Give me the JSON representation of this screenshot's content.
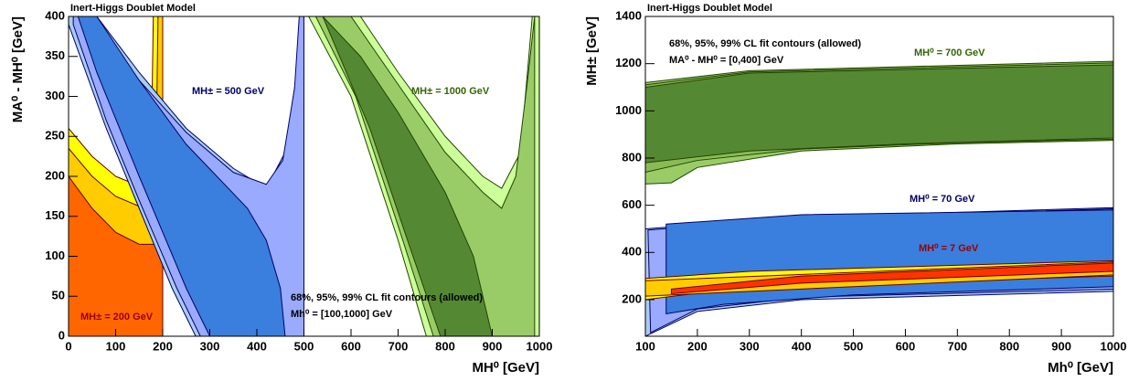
{
  "chart_data": [
    {
      "type": "contour",
      "title": "Inert-Higgs Doublet Model",
      "x_label": "MH⁰ [GeV]",
      "y_label": "MA⁰ - MH⁰ [GeV]",
      "annotations": [
        "68%, 95%, 99% CL fit contours (allowed)",
        "Mh⁰ = [100,1000] GeV"
      ],
      "xlim": [
        0,
        1000
      ],
      "ylim": [
        0,
        400
      ],
      "xticks": [
        0,
        100,
        200,
        300,
        400,
        500,
        600,
        700,
        800,
        900,
        1000
      ],
      "yticks": [
        0,
        50,
        100,
        150,
        200,
        250,
        300,
        350,
        400
      ],
      "series": [
        {
          "name": "MH± = 200 GeV",
          "color": "#990000",
          "regions": [
            {
              "color": "#ffff00",
              "x": [
                0,
                50,
                100,
                150,
                175,
                180,
                200,
                200,
                0
              ],
              "y": [
                260,
                225,
                200,
                188,
                200,
                400,
                400,
                0,
                0
              ]
            },
            {
              "color": "#ffcc00",
              "x": [
                0,
                50,
                100,
                160,
                185,
                190,
                200,
                200,
                0
              ],
              "y": [
                235,
                200,
                175,
                160,
                180,
                400,
                400,
                0,
                0
              ]
            },
            {
              "color": "#ff6600",
              "x": [
                0,
                50,
                100,
                150,
                200,
                200,
                0
              ],
              "y": [
                200,
                160,
                130,
                115,
                115,
                0,
                0
              ]
            }
          ]
        },
        {
          "name": "MH± = 500 GeV",
          "color": "#000066",
          "regions": [
            {
              "color": "#aaccf2",
              "x": [
                0,
                60,
                150,
                250,
                350,
                420,
                460,
                485,
                495,
                500,
                500,
                270,
                220,
                150,
                80,
                0
              ],
              "y": [
                400,
                400,
                330,
                260,
                210,
                185,
                230,
                330,
                400,
                400,
                0,
                0,
                60,
                160,
                260,
                390
              ]
            },
            {
              "color": "#99aaff",
              "x": [
                10,
                55,
                150,
                250,
                350,
                420,
                455,
                480,
                490,
                500,
                500,
                280,
                230,
                150,
                80,
                10
              ],
              "y": [
                400,
                400,
                320,
                255,
                205,
                190,
                220,
                310,
                400,
                400,
                0,
                0,
                60,
                170,
                270,
                390
              ]
            },
            {
              "color": "#3a7fdd",
              "x": [
                20,
                60,
                150,
                250,
                380,
                420,
                450,
                460,
                300,
                250,
                150,
                60
              ],
              "y": [
                400,
                400,
                320,
                240,
                160,
                120,
                60,
                0,
                0,
                60,
                200,
                330
              ]
            }
          ]
        },
        {
          "name": "MH± = 1000 GeV",
          "color": "#336600",
          "regions": [
            {
              "color": "#ccff99",
              "x": [
                510,
                620,
                700,
                800,
                880,
                920,
                960,
                985,
                1000,
                1000,
                760,
                700,
                600
              ],
              "y": [
                400,
                400,
                330,
                250,
                200,
                185,
                230,
                400,
                400,
                0,
                0,
                120,
                300
              ]
            },
            {
              "color": "#99cc66",
              "x": [
                525,
                600,
                700,
                800,
                880,
                920,
                950,
                975,
                990,
                990,
                775,
                710,
                610
              ],
              "y": [
                400,
                400,
                315,
                230,
                180,
                160,
                200,
                320,
                400,
                0,
                0,
                120,
                300
              ]
            },
            {
              "color": "#558833",
              "x": [
                540,
                620,
                700,
                800,
                860,
                900,
                790,
                720,
                640
              ],
              "y": [
                400,
                350,
                280,
                180,
                100,
                0,
                0,
                120,
                260
              ]
            }
          ]
        }
      ]
    },
    {
      "type": "contour",
      "title": "Inert-Higgs Doublet Model",
      "x_label": "Mh⁰ [GeV]",
      "y_label": "MH± [GeV]",
      "annotations": [
        "68%, 95%, 99% CL fit contours (allowed)",
        "MA⁰ - MH⁰ = [0,400] GeV"
      ],
      "xlim": [
        100,
        1000
      ],
      "ylim": [
        45,
        1400
      ],
      "xticks": [
        100,
        200,
        300,
        400,
        500,
        600,
        700,
        800,
        900,
        1000
      ],
      "yticks": [
        200,
        400,
        600,
        800,
        1000,
        1200,
        1400
      ],
      "series": [
        {
          "name": "MH⁰ = 700 GeV",
          "color": "#336600",
          "regions": [
            {
              "color": "#99cc66",
              "x": [
                100,
                300,
                1000,
                1000,
                700,
                400,
                200,
                150,
                100
              ],
              "y": [
                1120,
                1170,
                1210,
                875,
                860,
                830,
                760,
                695,
                690
              ]
            },
            {
              "color": "#88bb55",
              "x": [
                100,
                300,
                1000,
                1000,
                700,
                400,
                200,
                100
              ],
              "y": [
                1110,
                1165,
                1203,
                880,
                865,
                838,
                790,
                740
              ]
            },
            {
              "color": "#558833",
              "x": [
                100,
                300,
                1000,
                1000,
                600,
                300,
                100
              ],
              "y": [
                1100,
                1160,
                1195,
                885,
                860,
                830,
                780
              ]
            }
          ]
        },
        {
          "name": "MH⁰ = 70 GeV",
          "color": "#000066",
          "regions": [
            {
              "color": "#aaccf2",
              "x": [
                100,
                400,
                1000,
                1000,
                400,
                200,
                100
              ],
              "y": [
                500,
                550,
                590,
                235,
                200,
                150,
                45
              ]
            },
            {
              "color": "#99aaff",
              "x": [
                105,
                400,
                1000,
                1000,
                400,
                200,
                110
              ],
              "y": [
                495,
                545,
                585,
                245,
                210,
                160,
                60
              ]
            },
            {
              "color": "#3a7fdd",
              "x": [
                140,
                400,
                1000,
                1000,
                500,
                250,
                140
              ],
              "y": [
                520,
                560,
                580,
                255,
                220,
                180,
                140
              ]
            }
          ]
        },
        {
          "name": "MH⁰ = 7 GeV",
          "color": "#990000",
          "regions": [
            {
              "color": "#ffff00",
              "x": [
                100,
                300,
                1000,
                1000,
                300,
                100
              ],
              "y": [
                290,
                320,
                365,
                300,
                255,
                200
              ]
            },
            {
              "color": "#ffcc00",
              "x": [
                100,
                1000,
                1000,
                100
              ],
              "y": [
                280,
                360,
                305,
                215
              ]
            },
            {
              "color": "#ff3300",
              "x": [
                150,
                400,
                1000,
                1000,
                400,
                150
              ],
              "y": [
                245,
                300,
                355,
                320,
                270,
                225
              ]
            }
          ]
        }
      ]
    }
  ]
}
